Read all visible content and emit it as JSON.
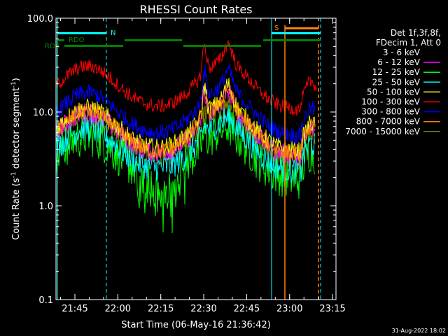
{
  "chart_data": {
    "type": "line",
    "title": "RHESSI Count Rates",
    "xlabel": "Start Time (06-May-16 21:36:42)",
    "ylabel": "Count Rate (s",
    "ylabel_sup": "-1",
    "ylabel_mid": " detector segment",
    "ylabel_sup2": "-1",
    "ylabel_end": ")",
    "yscale": "log",
    "ylim": [
      0.1,
      100
    ],
    "xlim_minutes": [
      21.64,
      23.27
    ],
    "x_ticks": [
      {
        "label": "21:45",
        "value": 21.75
      },
      {
        "label": "22:00",
        "value": 22.0
      },
      {
        "label": "22:15",
        "value": 22.25
      },
      {
        "label": "22:30",
        "value": 22.5
      },
      {
        "label": "22:45",
        "value": 22.75
      },
      {
        "label": "23:00",
        "value": 23.0
      },
      {
        "label": "23:15",
        "value": 23.25
      }
    ],
    "y_ticks": [
      {
        "label": "0.1",
        "value": 0.1
      },
      {
        "label": "1.0",
        "value": 1.0
      },
      {
        "label": "10.0",
        "value": 10.0
      },
      {
        "label": "100.0",
        "value": 100.0
      }
    ],
    "legend_header": [
      "Det 1f,3f,8f,",
      "FDecim 1, Att 0"
    ],
    "legend_placement": "right",
    "series": [
      {
        "name": "3 - 6 keV",
        "color": "#000000"
      },
      {
        "name": "6 - 12 keV",
        "color": "#ff00ff"
      },
      {
        "name": "12 - 25 keV",
        "color": "#00ff00"
      },
      {
        "name": "25 - 50 keV",
        "color": "#00ffff"
      },
      {
        "name": "50 - 100 keV",
        "color": "#ffff00"
      },
      {
        "name": "100 - 300 keV",
        "color": "#ff0000"
      },
      {
        "name": "300 - 800 keV",
        "color": "#0000ff"
      },
      {
        "name": "800 - 7000 keV",
        "color": "#ff8000"
      },
      {
        "name": "7000 - 15000 keV",
        "color": "#808000"
      }
    ],
    "annotations": {
      "rdo_label": "RDO",
      "rdb_label": "RDB",
      "n_label": "N",
      "s_label": "S"
    },
    "timestamp": "31-Aug-2022 18:02"
  }
}
